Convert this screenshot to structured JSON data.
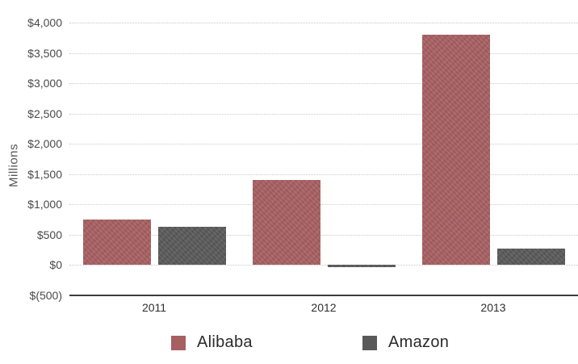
{
  "chart_data": {
    "type": "bar",
    "title": "",
    "xlabel": "",
    "ylabel": "Millions",
    "categories": [
      "2011",
      "2012",
      "2013"
    ],
    "series": [
      {
        "name": "Alibaba",
        "color": "#a75f62",
        "values": [
          750,
          1400,
          3800
        ]
      },
      {
        "name": "Amazon",
        "color": "#595959",
        "values": [
          630,
          -40,
          270
        ]
      }
    ],
    "y_axis": {
      "min": -500,
      "max": 4000,
      "step": 500,
      "ticks": [
        {
          "value": 4000,
          "label": "$4,000"
        },
        {
          "value": 3500,
          "label": "$3,500"
        },
        {
          "value": 3000,
          "label": "$3,000"
        },
        {
          "value": 2500,
          "label": "$2,500"
        },
        {
          "value": 2000,
          "label": "$2,000"
        },
        {
          "value": 1500,
          "label": "$1,500"
        },
        {
          "value": 1000,
          "label": "$1,000"
        },
        {
          "value": 500,
          "label": "$500"
        },
        {
          "value": 0,
          "label": "$0"
        },
        {
          "value": -500,
          "label": "$(500)"
        }
      ]
    },
    "grid": "horizontal dotted lines at each $500 step, solid baseline at -500",
    "legend_position": "bottom",
    "background_color": "#ffffff"
  }
}
